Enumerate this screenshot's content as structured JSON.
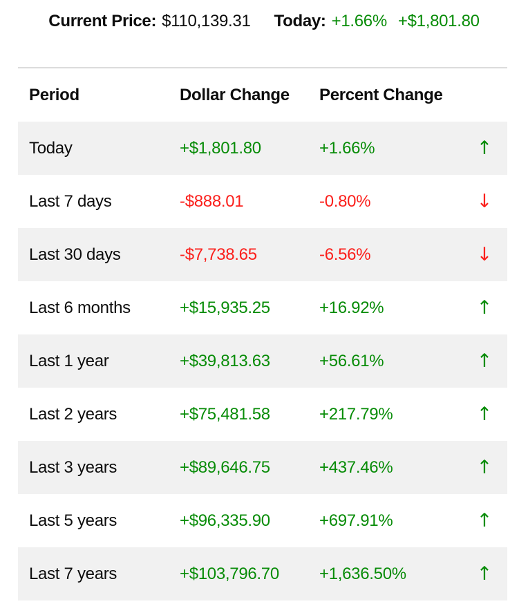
{
  "colors": {
    "positive": "#088c08",
    "negative": "#fb201c",
    "row_alt": "#f1f1f1",
    "border": "#dcdcdc",
    "text": "#0d0d0d"
  },
  "summary": {
    "current_price_label": "Current Price:",
    "current_price_value": "$110,139.31",
    "today_label": "Today:",
    "today_percent": "+1.66%",
    "today_dollar": "+$1,801.80"
  },
  "table": {
    "headers": {
      "period": "Period",
      "dollar": "Dollar Change",
      "percent": "Percent Change"
    },
    "up_arrow": "↑",
    "down_arrow": "↓",
    "rows": [
      {
        "period": "Today",
        "dollar": "+$1,801.80",
        "percent": "+1.66%",
        "direction": "up"
      },
      {
        "period": "Last 7 days",
        "dollar": "-$888.01",
        "percent": "-0.80%",
        "direction": "down"
      },
      {
        "period": "Last 30 days",
        "dollar": "-$7,738.65",
        "percent": "-6.56%",
        "direction": "down"
      },
      {
        "period": "Last 6 months",
        "dollar": "+$15,935.25",
        "percent": "+16.92%",
        "direction": "up"
      },
      {
        "period": "Last 1 year",
        "dollar": "+$39,813.63",
        "percent": "+56.61%",
        "direction": "up"
      },
      {
        "period": "Last 2 years",
        "dollar": "+$75,481.58",
        "percent": "+217.79%",
        "direction": "up"
      },
      {
        "period": "Last 3 years",
        "dollar": "+$89,646.75",
        "percent": "+437.46%",
        "direction": "up"
      },
      {
        "period": "Last 5 years",
        "dollar": "+$96,335.90",
        "percent": "+697.91%",
        "direction": "up"
      },
      {
        "period": "Last 7 years",
        "dollar": "+$103,796.70",
        "percent": "+1,636.50%",
        "direction": "up"
      }
    ]
  }
}
